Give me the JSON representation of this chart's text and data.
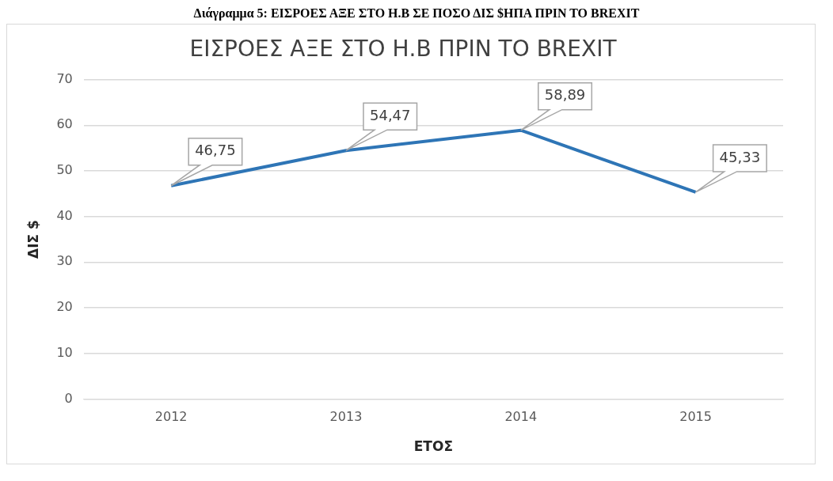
{
  "chart_data": {
    "type": "line",
    "title": "ΕΙΣΡΟΕΣ ΑΞΕ ΣΤΟ Η.Β ΠΡΙΝ ΤΟ BREXIT",
    "xlabel": "ΕΤΟΣ",
    "ylabel": "ΔΙΣ $",
    "annotations": [
      "Διάγραμμα 5: ΕΙΣΡΟΕΣ ΑΞΕ ΣΤΟ Η.Β ΣΕ ΠΟΣΟ ΔΙΣ $ΗΠΑ ΠΡΙΝ ΤΟ BREXIT"
    ],
    "categories": [
      "2012",
      "2013",
      "2014",
      "2015"
    ],
    "series": [
      {
        "color": "#2e75b6",
        "values": [
          46.75,
          54.47,
          58.89,
          45.33
        ]
      }
    ],
    "value_labels": [
      "46,75",
      "54,47",
      "58,89",
      "45,33"
    ],
    "ylim": [
      0,
      70
    ],
    "yticks": [
      0,
      10,
      20,
      30,
      40,
      50,
      60,
      70
    ],
    "grid": "y",
    "legend": false,
    "marker": "none",
    "line_style": "solid"
  }
}
